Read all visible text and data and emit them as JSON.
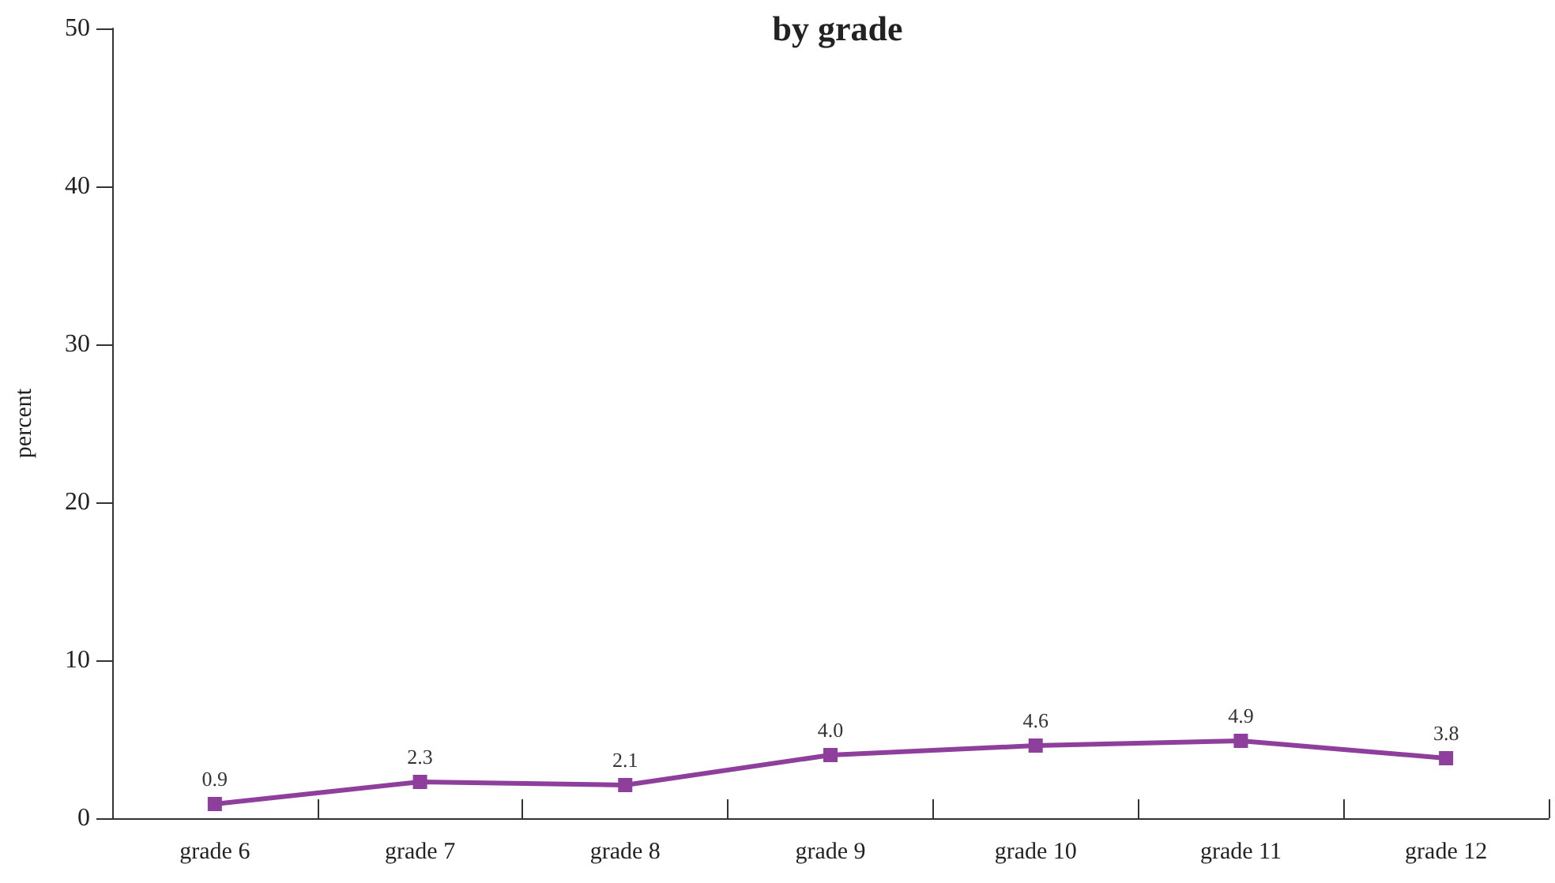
{
  "chart_data": {
    "type": "line",
    "title": "by grade",
    "ylabel": "percent",
    "categories": [
      "grade 6",
      "grade 7",
      "grade 8",
      "grade 9",
      "grade 10",
      "grade 11",
      "grade 12"
    ],
    "series": [
      {
        "color": "#8e3f9c",
        "values": [
          0.9,
          2.3,
          2.1,
          4.0,
          4.6,
          4.9,
          3.8
        ],
        "value_labels": [
          "0.9",
          "2.3",
          "2.1",
          "4.0",
          "4.6",
          "4.9",
          "3.8"
        ]
      }
    ],
    "ylim": [
      0,
      50
    ],
    "yticks": [
      0,
      10,
      20,
      30,
      40,
      50
    ],
    "grid": false,
    "marker": "square",
    "line_style": "solid"
  }
}
